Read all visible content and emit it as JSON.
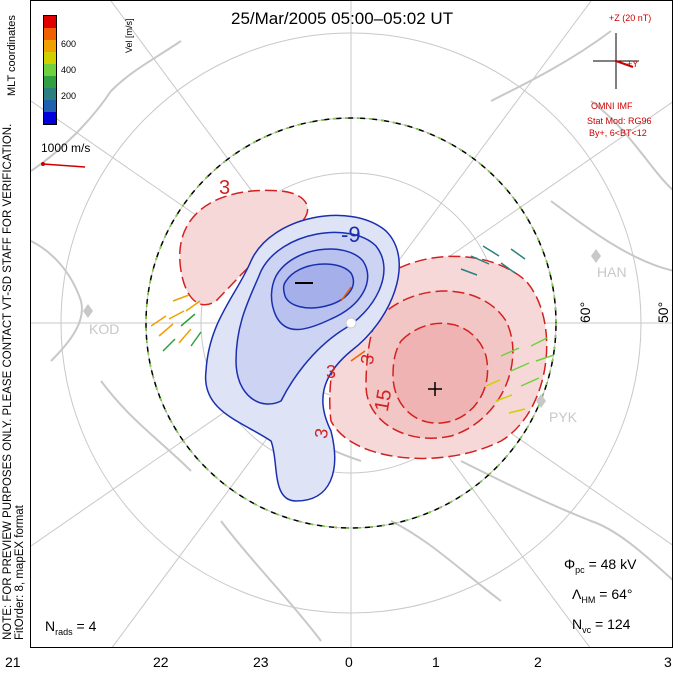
{
  "title": "25/Mar/2005 05:00–05:02 UT",
  "coordinates_label": "MLT coordinates",
  "preview_note": "NOTE: FOR PREVIEW PURPOSES ONLY. PLEASE CONTACT VT-SD STAFF FOR VERIFICATION.",
  "fit_order_note": "FitOrder: 8, mapEX format",
  "colorbar": {
    "title": "Vel [m/s]",
    "ticks": [
      "600",
      "400",
      "200"
    ],
    "colors": [
      "#e00000",
      "#f06000",
      "#f0a000",
      "#d0d000",
      "#70d040",
      "#30a040",
      "#2a8080",
      "#2060b0",
      "#0000dd"
    ]
  },
  "reference_vector": {
    "label": "1000 m/s",
    "color": "#cc0000"
  },
  "imf": {
    "z_label": "+Z (20 nT)",
    "y_label": "+Y",
    "source": "OMNI IMF",
    "model": "Stat Mod: RG96",
    "condition": "By+, 6<BT<12",
    "color": "#cc0000"
  },
  "contours": {
    "labels": [
      "3",
      "-9",
      "3",
      "15",
      "3",
      "3"
    ],
    "positive_color": "#d42020",
    "negative_color": "#1a2fb0"
  },
  "stations": [
    "KOD",
    "HAN",
    "PYK"
  ],
  "latitude_labels": [
    "60°",
    "50°"
  ],
  "mlt_ticks": [
    "21",
    "22",
    "23",
    "0",
    "1",
    "2",
    "3"
  ],
  "stats": {
    "phi_symbol": "Φ",
    "phi_sub": "pc",
    "phi_value": "= 48 kV",
    "lambda_symbol": "Λ",
    "lambda_sub": "HM",
    "lambda_value": "= 64°",
    "nvc_symbol": "N",
    "nvc_sub": "vc",
    "nvc_value": "= 124",
    "nrads_symbol": "N",
    "nrads_sub": "rads",
    "nrads_value": "= 4"
  }
}
